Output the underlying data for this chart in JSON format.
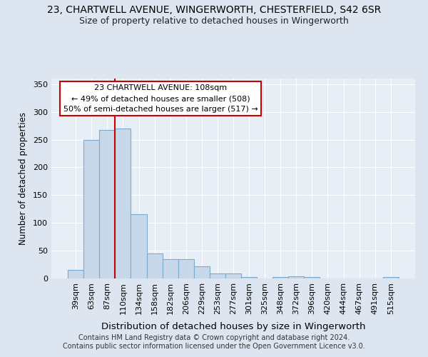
{
  "title1": "23, CHARTWELL AVENUE, WINGERWORTH, CHESTERFIELD, S42 6SR",
  "title2": "Size of property relative to detached houses in Wingerworth",
  "xlabel": "Distribution of detached houses by size in Wingerworth",
  "ylabel": "Number of detached properties",
  "footnote1": "Contains HM Land Registry data © Crown copyright and database right 2024.",
  "footnote2": "Contains public sector information licensed under the Open Government Licence v3.0.",
  "categories": [
    "39sqm",
    "63sqm",
    "87sqm",
    "110sqm",
    "134sqm",
    "158sqm",
    "182sqm",
    "206sqm",
    "229sqm",
    "253sqm",
    "277sqm",
    "301sqm",
    "325sqm",
    "348sqm",
    "372sqm",
    "396sqm",
    "420sqm",
    "444sqm",
    "467sqm",
    "491sqm",
    "515sqm"
  ],
  "values": [
    16,
    250,
    267,
    270,
    116,
    45,
    35,
    35,
    22,
    9,
    9,
    3,
    0,
    3,
    4,
    3,
    0,
    0,
    0,
    0,
    3
  ],
  "bar_color": "#c8d8eb",
  "bar_edge_color": "#7aaace",
  "vline_color": "#cc0000",
  "vline_x": 2.5,
  "annotation_line1": "23 CHARTWELL AVENUE: 108sqm",
  "annotation_line2": "← 49% of detached houses are smaller (508)",
  "annotation_line3": "50% of semi-detached houses are larger (517) →",
  "annotation_box_color": "#ffffff",
  "annotation_box_edge": "#cc0000",
  "ylim_max": 360,
  "yticks": [
    0,
    50,
    100,
    150,
    200,
    250,
    300,
    350
  ],
  "bg_color": "#dde6f0",
  "plot_bg_color": "#e8eef5",
  "grid_color": "#ffffff",
  "title1_fontsize": 10,
  "title2_fontsize": 9,
  "tick_fontsize": 8,
  "xlabel_fontsize": 9.5,
  "ylabel_fontsize": 8.5,
  "annot_fontsize": 8,
  "footnote_fontsize": 7
}
